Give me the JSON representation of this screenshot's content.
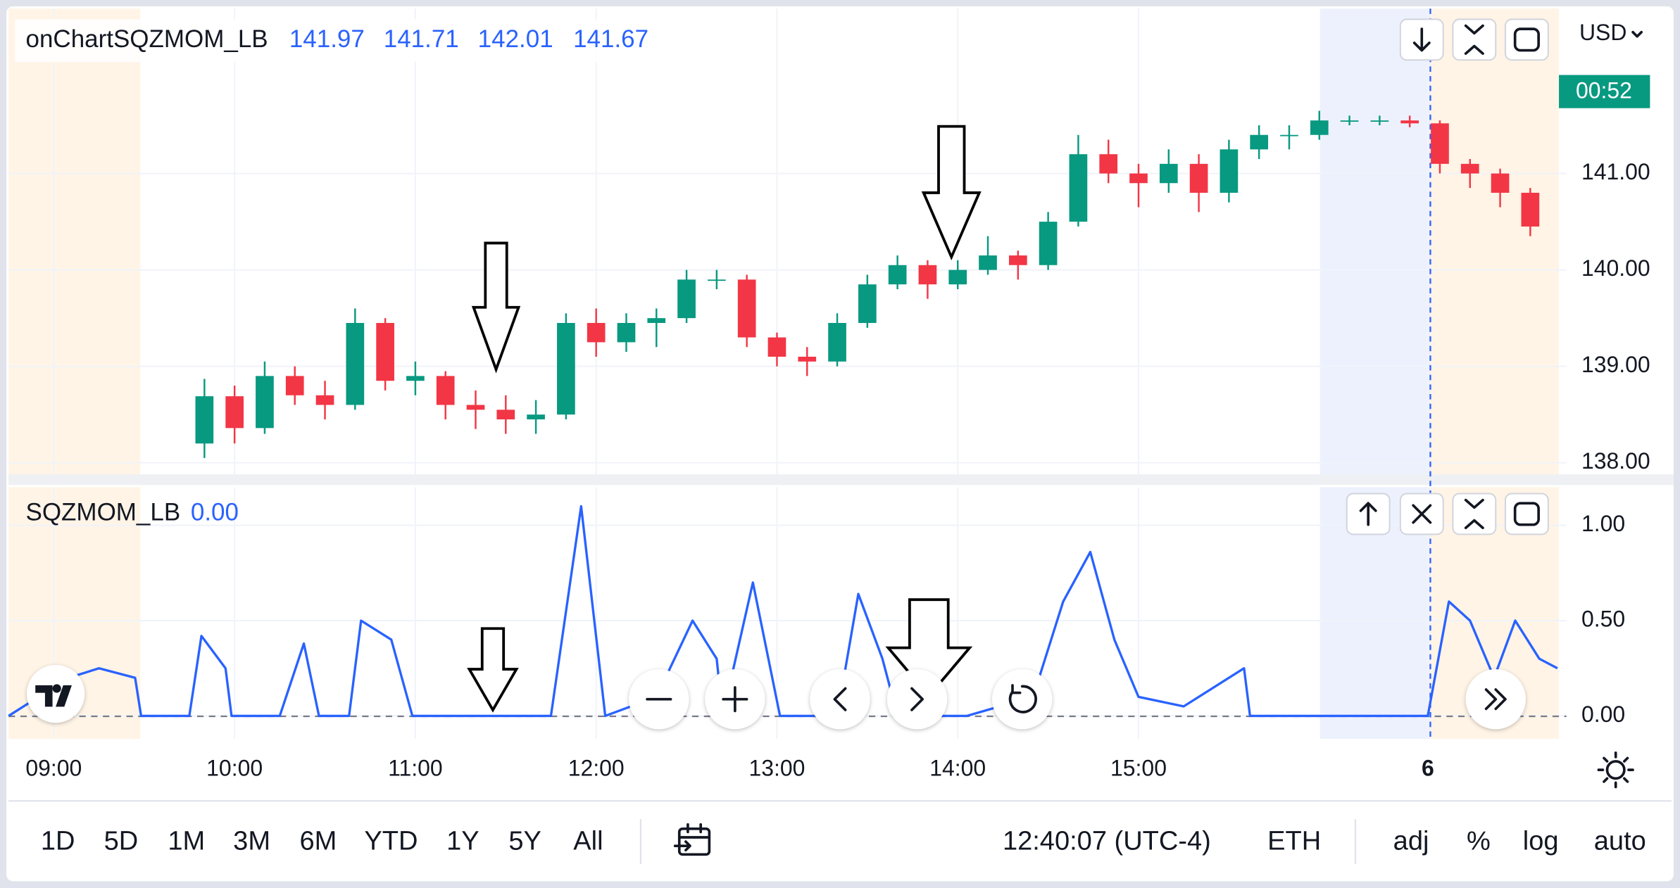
{
  "legend": {
    "title": "onChartSQZMOM_LB",
    "values": [
      "141.97",
      "141.71",
      "142.01",
      "141.67"
    ]
  },
  "currency": "USD",
  "chart_data": [
    {
      "type": "candlestick",
      "countdown": "00:52",
      "up_color": "#089981",
      "down_color": "#f23645",
      "xlim": [
        "08:45",
        "17:22"
      ],
      "ylim": [
        137.88,
        142.71
      ],
      "yticks": [
        {
          "value": 138,
          "label": "138.00"
        },
        {
          "value": 139,
          "label": "139.00"
        },
        {
          "value": 140,
          "label": "140.00"
        },
        {
          "value": 141,
          "label": "141.00"
        }
      ],
      "grid": true,
      "x": [
        "09:50",
        "10:00",
        "10:10",
        "10:20",
        "10:30",
        "10:40",
        "10:50",
        "11:00",
        "11:10",
        "11:20",
        "11:30",
        "11:40",
        "11:50",
        "12:00",
        "12:10",
        "12:20",
        "12:30",
        "12:40",
        "12:50",
        "13:00",
        "13:10",
        "13:20",
        "13:30",
        "13:40",
        "13:50",
        "14:00",
        "14:10",
        "14:20",
        "14:30",
        "14:40",
        "14:50",
        "15:00",
        "15:10",
        "15:20",
        "15:30",
        "15:40",
        "15:50",
        "16:00",
        "16:10",
        "16:20",
        "16:30",
        "16:40",
        "16:50",
        "17:00",
        "17:10"
      ],
      "open": [
        138.2,
        138.69,
        138.36,
        138.9,
        138.7,
        138.6,
        139.45,
        138.85,
        138.9,
        138.6,
        138.55,
        138.45,
        138.5,
        139.45,
        139.25,
        139.45,
        139.5,
        139.9,
        139.9,
        139.3,
        139.1,
        139.05,
        139.45,
        139.85,
        140.05,
        139.85,
        140.0,
        140.15,
        140.05,
        140.5,
        141.2,
        141.0,
        140.9,
        141.1,
        140.8,
        141.25,
        141.4,
        141.4,
        141.55,
        141.55,
        141.55,
        141.52,
        141.1,
        141.0,
        140.8
      ],
      "high": [
        138.87,
        138.8,
        139.05,
        139.0,
        138.85,
        139.6,
        139.5,
        139.05,
        138.95,
        138.75,
        138.7,
        138.65,
        139.55,
        139.6,
        139.55,
        139.6,
        140.0,
        140.0,
        139.95,
        139.35,
        139.2,
        139.55,
        139.95,
        140.15,
        140.1,
        140.1,
        140.35,
        140.2,
        140.6,
        141.4,
        141.35,
        141.1,
        141.25,
        141.2,
        141.35,
        141.5,
        141.5,
        141.65,
        141.6,
        141.6,
        141.6,
        141.55,
        141.15,
        141.05,
        140.85
      ],
      "low": [
        138.05,
        138.2,
        138.3,
        138.6,
        138.45,
        138.55,
        138.75,
        138.7,
        138.45,
        138.35,
        138.3,
        138.3,
        138.45,
        139.1,
        139.15,
        139.2,
        139.45,
        139.8,
        139.2,
        139.0,
        138.9,
        139.0,
        139.4,
        139.8,
        139.7,
        139.8,
        139.95,
        139.9,
        140.0,
        140.45,
        140.9,
        140.65,
        140.8,
        140.6,
        140.7,
        141.15,
        141.25,
        141.35,
        141.5,
        141.5,
        141.48,
        141.0,
        140.85,
        140.65,
        140.35
      ],
      "close": [
        138.69,
        138.36,
        138.9,
        138.7,
        138.6,
        139.45,
        138.85,
        138.9,
        138.6,
        138.55,
        138.45,
        138.5,
        139.45,
        139.25,
        139.45,
        139.5,
        139.9,
        139.9,
        139.3,
        139.1,
        139.05,
        139.45,
        139.85,
        140.05,
        139.85,
        140.0,
        140.15,
        140.05,
        140.5,
        141.2,
        141.0,
        140.9,
        141.1,
        140.8,
        141.25,
        141.4,
        141.4,
        141.55,
        141.55,
        141.55,
        141.52,
        141.1,
        141.0,
        140.8,
        140.45
      ]
    },
    {
      "type": "line",
      "title": "SQZMOM_LB",
      "readout": "0.00",
      "xlim": [
        "08:45",
        "17:22"
      ],
      "ylim": [
        -0.12,
        1.2
      ],
      "xticks": [
        "09:00",
        "10:00",
        "11:00",
        "12:00",
        "13:00",
        "14:00",
        "15:00",
        {
          "value": "16:36",
          "label": "6"
        }
      ],
      "yticks": [
        {
          "value": 0,
          "label": "0.00"
        },
        {
          "value": 0.5,
          "label": "0.50"
        },
        {
          "value": 1,
          "label": "1.00"
        }
      ],
      "grid": true,
      "x": [
        "08:45",
        "08:55",
        "09:05",
        "09:15",
        "09:27",
        "09:29",
        "09:45",
        "09:49",
        "09:57",
        "09:59",
        "10:15",
        "10:23",
        "10:28",
        "10:38",
        "10:42",
        "10:52",
        "10:59",
        "11:45",
        "11:55",
        "12:03",
        "12:20",
        "12:32",
        "12:40",
        "12:42",
        "12:52",
        "13:01",
        "13:20",
        "13:27",
        "13:35",
        "13:40",
        "14:03",
        "14:25",
        "14:35",
        "14:44",
        "14:52",
        "15:00",
        "15:15",
        "15:35",
        "15:37",
        "16:36",
        "16:43",
        "16:50",
        "16:58",
        "17:05",
        "17:13",
        "17:19"
      ],
      "series": [
        {
          "name": "SQZMOM_LB",
          "color": "#2962ff",
          "values": [
            0.0,
            0.1,
            0.2,
            0.25,
            0.2,
            0.0,
            0.0,
            0.42,
            0.25,
            0.0,
            0.0,
            0.38,
            0.0,
            0.0,
            0.5,
            0.4,
            0.0,
            0.0,
            1.1,
            0.0,
            0.1,
            0.5,
            0.3,
            0.0,
            0.7,
            0.0,
            0.0,
            0.64,
            0.3,
            0.0,
            0.0,
            0.1,
            0.6,
            0.86,
            0.4,
            0.1,
            0.05,
            0.25,
            0.0,
            0.0,
            0.6,
            0.5,
            0.2,
            0.5,
            0.3,
            0.25
          ]
        }
      ]
    }
  ],
  "toolbar": {
    "ranges": [
      "1D",
      "5D",
      "1M",
      "3M",
      "6M",
      "YTD",
      "1Y",
      "5Y",
      "All"
    ],
    "time": "12:40:07 (UTC-4)",
    "session": "ETH",
    "options": [
      "adj",
      "%",
      "log",
      "auto"
    ]
  }
}
